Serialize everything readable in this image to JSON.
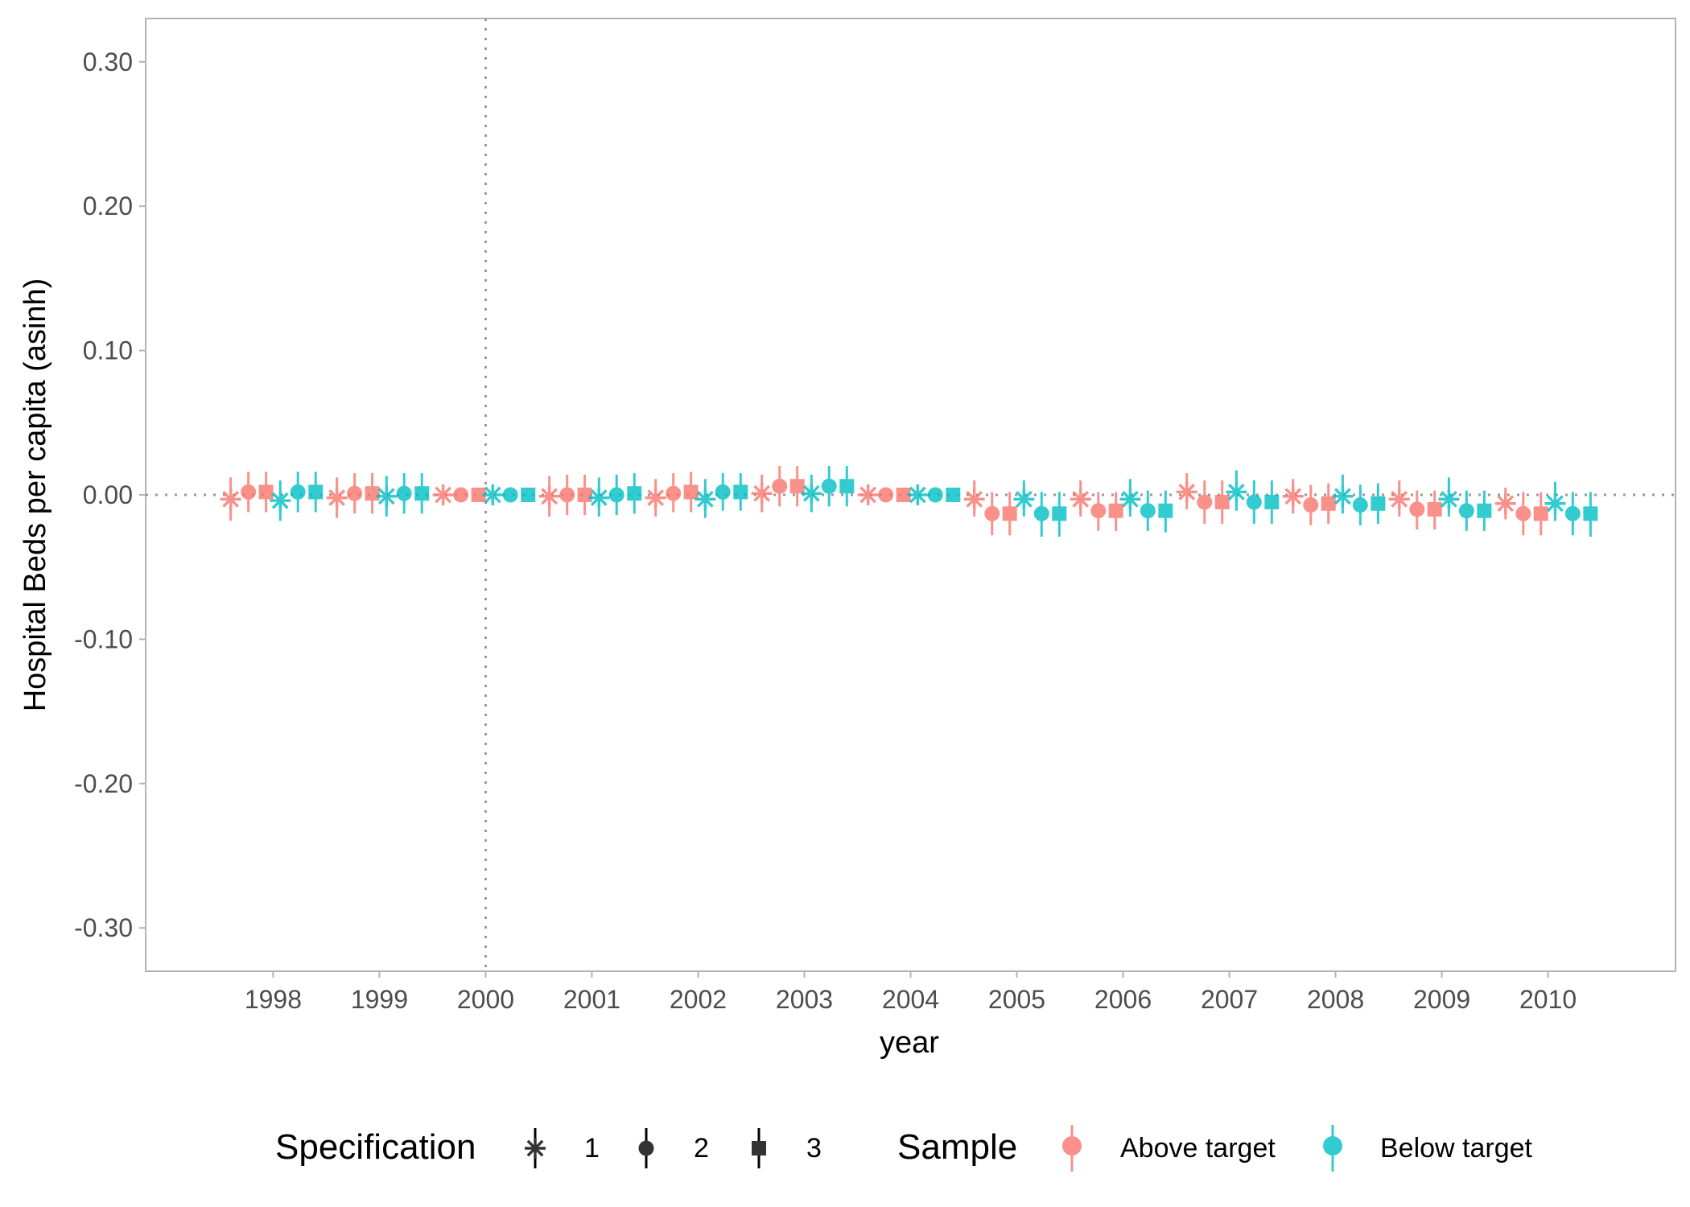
{
  "chart_data": {
    "type": "scatter",
    "title": "",
    "xlabel": "year",
    "ylabel": "Hospital Beds per capita (asinh)",
    "ylim": [
      -0.33,
      0.33
    ],
    "xlim": [
      1996.8,
      2011.2
    ],
    "y_ticks": [
      0.3,
      0.2,
      0.1,
      0.0,
      -0.1,
      -0.2,
      -0.3
    ],
    "y_tick_labels": [
      "0.30",
      "0.20",
      "0.10",
      "0.00",
      "-0.10",
      "-0.20",
      "-0.30"
    ],
    "x_tick_labels": [
      "1998",
      "1999",
      "2000",
      "2001",
      "2002",
      "2003",
      "2004",
      "2005",
      "2006",
      "2007",
      "2008",
      "2009",
      "2010"
    ],
    "reference_lines": {
      "vertical_x": 2000,
      "horizontal_y": 0
    },
    "grid": false,
    "legend_placement": "bottom",
    "legends": {
      "specification": {
        "title": "Specification",
        "items": [
          {
            "label": "1",
            "shape": "asterisk"
          },
          {
            "label": "2",
            "shape": "circle"
          },
          {
            "label": "3",
            "shape": "square"
          }
        ]
      },
      "sample": {
        "title": "Sample",
        "items": [
          {
            "label": "Above target",
            "color": "#F8766D"
          },
          {
            "label": "Below target",
            "color": "#00BFC4"
          }
        ]
      }
    },
    "series": [
      {
        "sample": "Above target",
        "specification": "1",
        "shape": "asterisk",
        "color": "#F8766D",
        "points": [
          {
            "x": 1998,
            "y": -0.003,
            "lo": -0.018,
            "hi": 0.012
          },
          {
            "x": 1999,
            "y": -0.002,
            "lo": -0.016,
            "hi": 0.012
          },
          {
            "x": 2000,
            "y": 0.0,
            "lo": -0.004,
            "hi": 0.004
          },
          {
            "x": 2001,
            "y": -0.001,
            "lo": -0.015,
            "hi": 0.013
          },
          {
            "x": 2002,
            "y": -0.002,
            "lo": -0.015,
            "hi": 0.011
          },
          {
            "x": 2003,
            "y": 0.001,
            "lo": -0.012,
            "hi": 0.014
          },
          {
            "x": 2004,
            "y": 0.0,
            "lo": -0.004,
            "hi": 0.004
          },
          {
            "x": 2005,
            "y": -0.003,
            "lo": -0.015,
            "hi": 0.01
          },
          {
            "x": 2006,
            "y": -0.003,
            "lo": -0.015,
            "hi": 0.01
          },
          {
            "x": 2007,
            "y": 0.002,
            "lo": -0.01,
            "hi": 0.015
          },
          {
            "x": 2008,
            "y": -0.001,
            "lo": -0.013,
            "hi": 0.011
          },
          {
            "x": 2009,
            "y": -0.003,
            "lo": -0.015,
            "hi": 0.01
          },
          {
            "x": 2010,
            "y": -0.006,
            "lo": -0.017,
            "hi": 0.005
          }
        ]
      },
      {
        "sample": "Above target",
        "specification": "2",
        "shape": "circle",
        "color": "#F8766D",
        "points": [
          {
            "x": 1998,
            "y": 0.002,
            "lo": -0.012,
            "hi": 0.016
          },
          {
            "x": 1999,
            "y": 0.001,
            "lo": -0.013,
            "hi": 0.015
          },
          {
            "x": 2000,
            "y": 0.0,
            "lo": -0.003,
            "hi": 0.003
          },
          {
            "x": 2001,
            "y": 0.0,
            "lo": -0.014,
            "hi": 0.014
          },
          {
            "x": 2002,
            "y": 0.001,
            "lo": -0.012,
            "hi": 0.015
          },
          {
            "x": 2003,
            "y": 0.006,
            "lo": -0.008,
            "hi": 0.02
          },
          {
            "x": 2004,
            "y": 0.0,
            "lo": -0.003,
            "hi": 0.003
          },
          {
            "x": 2005,
            "y": -0.013,
            "lo": -0.028,
            "hi": 0.002
          },
          {
            "x": 2006,
            "y": -0.011,
            "lo": -0.025,
            "hi": 0.002
          },
          {
            "x": 2007,
            "y": -0.005,
            "lo": -0.02,
            "hi": 0.01
          },
          {
            "x": 2008,
            "y": -0.007,
            "lo": -0.021,
            "hi": 0.007
          },
          {
            "x": 2009,
            "y": -0.01,
            "lo": -0.024,
            "hi": 0.003
          },
          {
            "x": 2010,
            "y": -0.013,
            "lo": -0.028,
            "hi": 0.002
          }
        ]
      },
      {
        "sample": "Above target",
        "specification": "3",
        "shape": "square",
        "color": "#F8766D",
        "points": [
          {
            "x": 1998,
            "y": 0.002,
            "lo": -0.012,
            "hi": 0.016
          },
          {
            "x": 1999,
            "y": 0.001,
            "lo": -0.013,
            "hi": 0.015
          },
          {
            "x": 2000,
            "y": 0.0,
            "lo": -0.003,
            "hi": 0.003
          },
          {
            "x": 2001,
            "y": 0.0,
            "lo": -0.014,
            "hi": 0.014
          },
          {
            "x": 2002,
            "y": 0.002,
            "lo": -0.012,
            "hi": 0.016
          },
          {
            "x": 2003,
            "y": 0.006,
            "lo": -0.008,
            "hi": 0.02
          },
          {
            "x": 2004,
            "y": 0.0,
            "lo": -0.003,
            "hi": 0.003
          },
          {
            "x": 2005,
            "y": -0.013,
            "lo": -0.028,
            "hi": 0.002
          },
          {
            "x": 2006,
            "y": -0.011,
            "lo": -0.025,
            "hi": 0.002
          },
          {
            "x": 2007,
            "y": -0.005,
            "lo": -0.02,
            "hi": 0.01
          },
          {
            "x": 2008,
            "y": -0.006,
            "lo": -0.02,
            "hi": 0.008
          },
          {
            "x": 2009,
            "y": -0.01,
            "lo": -0.024,
            "hi": 0.003
          },
          {
            "x": 2010,
            "y": -0.013,
            "lo": -0.028,
            "hi": 0.002
          }
        ]
      },
      {
        "sample": "Below target",
        "specification": "1",
        "shape": "asterisk",
        "color": "#00BFC4",
        "points": [
          {
            "x": 1998,
            "y": -0.004,
            "lo": -0.018,
            "hi": 0.01
          },
          {
            "x": 1999,
            "y": -0.001,
            "lo": -0.015,
            "hi": 0.013
          },
          {
            "x": 2000,
            "y": 0.0,
            "lo": -0.004,
            "hi": 0.004
          },
          {
            "x": 2001,
            "y": -0.002,
            "lo": -0.015,
            "hi": 0.012
          },
          {
            "x": 2002,
            "y": -0.003,
            "lo": -0.016,
            "hi": 0.011
          },
          {
            "x": 2003,
            "y": 0.001,
            "lo": -0.012,
            "hi": 0.014
          },
          {
            "x": 2004,
            "y": 0.0,
            "lo": -0.005,
            "hi": 0.006
          },
          {
            "x": 2005,
            "y": -0.003,
            "lo": -0.015,
            "hi": 0.01
          },
          {
            "x": 2006,
            "y": -0.003,
            "lo": -0.015,
            "hi": 0.011
          },
          {
            "x": 2007,
            "y": 0.002,
            "lo": -0.011,
            "hi": 0.017
          },
          {
            "x": 2008,
            "y": -0.001,
            "lo": -0.013,
            "hi": 0.014
          },
          {
            "x": 2009,
            "y": -0.003,
            "lo": -0.015,
            "hi": 0.012
          },
          {
            "x": 2010,
            "y": -0.006,
            "lo": -0.018,
            "hi": 0.009
          }
        ]
      },
      {
        "sample": "Below target",
        "specification": "2",
        "shape": "circle",
        "color": "#00BFC4",
        "points": [
          {
            "x": 1998,
            "y": 0.002,
            "lo": -0.012,
            "hi": 0.016
          },
          {
            "x": 1999,
            "y": 0.001,
            "lo": -0.013,
            "hi": 0.015
          },
          {
            "x": 2000,
            "y": 0.0,
            "lo": -0.003,
            "hi": 0.003
          },
          {
            "x": 2001,
            "y": 0.0,
            "lo": -0.014,
            "hi": 0.014
          },
          {
            "x": 2002,
            "y": 0.002,
            "lo": -0.011,
            "hi": 0.015
          },
          {
            "x": 2003,
            "y": 0.006,
            "lo": -0.008,
            "hi": 0.02
          },
          {
            "x": 2004,
            "y": 0.0,
            "lo": -0.003,
            "hi": 0.003
          },
          {
            "x": 2005,
            "y": -0.013,
            "lo": -0.029,
            "hi": 0.002
          },
          {
            "x": 2006,
            "y": -0.011,
            "lo": -0.025,
            "hi": 0.003
          },
          {
            "x": 2007,
            "y": -0.005,
            "lo": -0.02,
            "hi": 0.01
          },
          {
            "x": 2008,
            "y": -0.007,
            "lo": -0.021,
            "hi": 0.007
          },
          {
            "x": 2009,
            "y": -0.011,
            "lo": -0.025,
            "hi": 0.003
          },
          {
            "x": 2010,
            "y": -0.013,
            "lo": -0.028,
            "hi": 0.002
          }
        ]
      },
      {
        "sample": "Below target",
        "specification": "3",
        "shape": "square",
        "color": "#00BFC4",
        "points": [
          {
            "x": 1998,
            "y": 0.002,
            "lo": -0.012,
            "hi": 0.016
          },
          {
            "x": 1999,
            "y": 0.001,
            "lo": -0.013,
            "hi": 0.015
          },
          {
            "x": 2000,
            "y": 0.0,
            "lo": -0.003,
            "hi": 0.003
          },
          {
            "x": 2001,
            "y": 0.001,
            "lo": -0.013,
            "hi": 0.015
          },
          {
            "x": 2002,
            "y": 0.002,
            "lo": -0.011,
            "hi": 0.015
          },
          {
            "x": 2003,
            "y": 0.006,
            "lo": -0.008,
            "hi": 0.02
          },
          {
            "x": 2004,
            "y": 0.0,
            "lo": -0.003,
            "hi": 0.003
          },
          {
            "x": 2005,
            "y": -0.013,
            "lo": -0.029,
            "hi": 0.002
          },
          {
            "x": 2006,
            "y": -0.011,
            "lo": -0.026,
            "hi": 0.003
          },
          {
            "x": 2007,
            "y": -0.005,
            "lo": -0.02,
            "hi": 0.01
          },
          {
            "x": 2008,
            "y": -0.006,
            "lo": -0.02,
            "hi": 0.008
          },
          {
            "x": 2009,
            "y": -0.011,
            "lo": -0.025,
            "hi": 0.003
          },
          {
            "x": 2010,
            "y": -0.013,
            "lo": -0.029,
            "hi": 0.002
          }
        ]
      }
    ]
  }
}
